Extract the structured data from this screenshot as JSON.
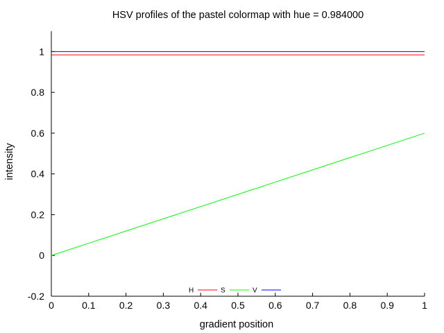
{
  "chart_data": {
    "type": "line",
    "title": "HSV profiles of the pastel colormap with hue = 0.984000",
    "xlabel": "gradient position",
    "ylabel": "intensity",
    "xlim": [
      0,
      1
    ],
    "ylim": [
      -0.2,
      1.1
    ],
    "xticks": [
      0,
      0.1,
      0.2,
      0.3,
      0.4,
      0.5,
      0.6,
      0.7,
      0.8,
      0.9,
      1
    ],
    "xtick_labels": [
      "0",
      "0.1",
      "0.2",
      "0.3",
      "0.4",
      "0.5",
      "0.6",
      "0.7",
      "0.8",
      "0.9",
      "1"
    ],
    "yticks": [
      -0.2,
      0,
      0.2,
      0.4,
      0.6,
      0.8,
      1
    ],
    "ytick_labels": [
      "-0.2",
      "0",
      "0.2",
      "0.4",
      "0.6",
      "0.8",
      "1"
    ],
    "grid": false,
    "legend_position": "bottom-center",
    "series": [
      {
        "name": "H",
        "color": "#ff0000",
        "x": [
          0,
          1
        ],
        "y": [
          0.984,
          0.984
        ]
      },
      {
        "name": "S",
        "color": "#00ff00",
        "x": [
          0,
          1
        ],
        "y": [
          0.0,
          0.6
        ]
      },
      {
        "name": "V",
        "color": "#0000ff",
        "x": [
          0,
          1
        ],
        "y": [
          1.0,
          1.0
        ]
      }
    ]
  }
}
